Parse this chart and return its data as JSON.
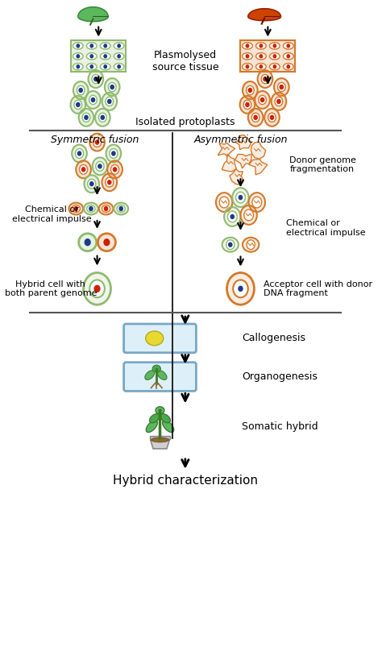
{
  "bg_color": "#ffffff",
  "text_color": "#000000",
  "green_leaf_color": "#4a9e2f",
  "red_leaf_color": "#cc3300",
  "green_cell_outline": "#8fba6e",
  "green_dot_color": "#1a3a8a",
  "orange_cell_outline": "#d4782a",
  "red_dot_color": "#cc2200",
  "divider_line_color": "#555555",
  "labels": {
    "plasmolysed": "Plasmolysed\nsource tissue",
    "isolated": "Isolated protoplasts",
    "symmetric": "Symmetric fusion",
    "asymmetric": "Asymmetric fusion",
    "donor_genome": "Donor genome\nfragmentation",
    "chem_elec1": "Chemical or\nelectrical impulse",
    "chem_elec2": "Chemical or\nelectrical impulse",
    "hybrid_cell": "Hybrid cell with\nboth parent genome",
    "acceptor_cell": "Acceptor cell with donor\nDNA fragment",
    "callogenesis": "Callogenesis",
    "organogenesis": "Organogenesis",
    "somatic_hybrid": "Somatic hybrid",
    "hybrid_char": "Hybrid characterization"
  }
}
